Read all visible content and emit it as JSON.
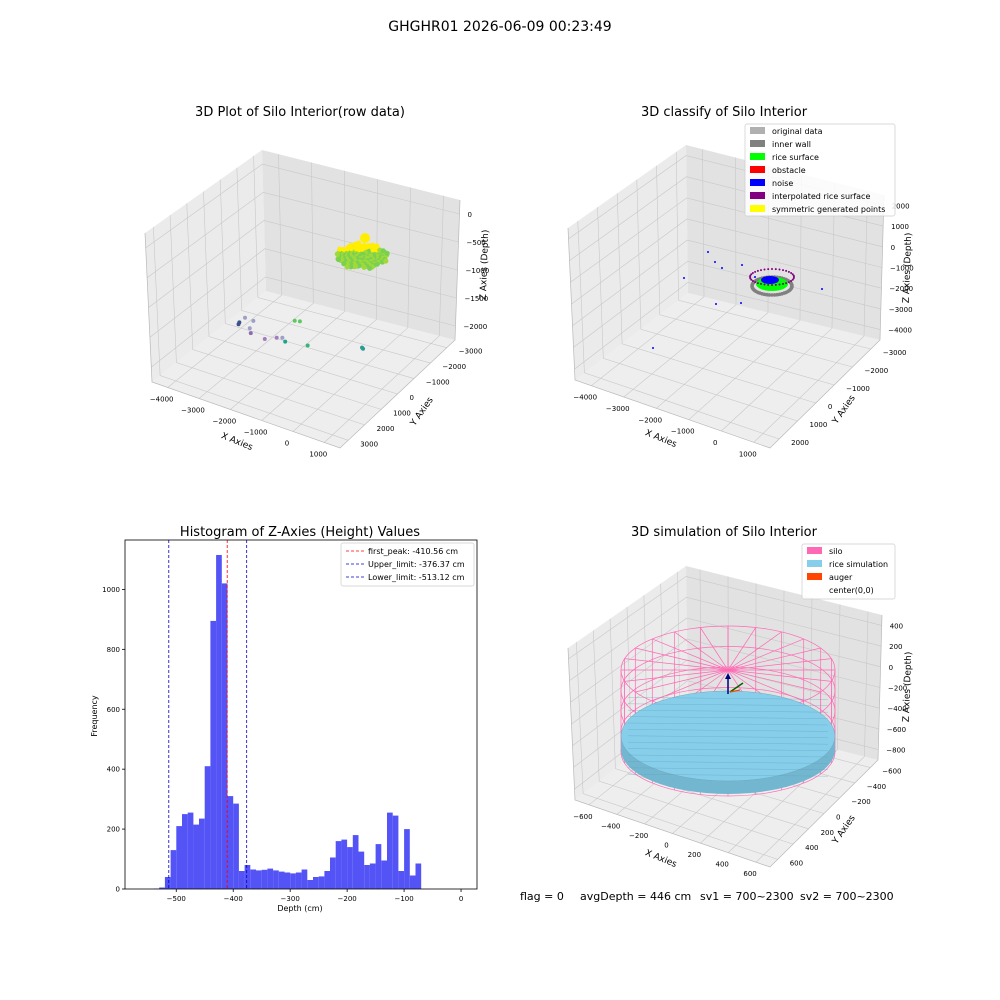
{
  "figure": {
    "suptitle": "GHGHR01 2026-06-09 00:23:49",
    "footer": {
      "flag": "flag = 0",
      "avg_depth": "avgDepth = 446 cm",
      "sv1": "sv1 = 700~2300",
      "sv2": "sv2 = 700~2300"
    }
  },
  "colors": {
    "pane_left": "#ebebeb",
    "pane_right": "#e2e2e2",
    "pane_floor": "#eeeeee",
    "grid": "#c8c8c8",
    "hist_bar": "#4a4af5",
    "peak_line": "#ff0000",
    "limit_line": "#0000cc",
    "rice_surface": "#00ff00",
    "rice_yellow": "#ffee00",
    "inner_wall": "#808080",
    "noise": "#0000ff",
    "interpolated": "#800080",
    "silo_wire": "#ff69b4",
    "rice_sim": "#87ceeb",
    "auger": "#ff4500"
  },
  "chart_data": [
    {
      "id": "raw",
      "type": "scatter",
      "title": "3D Plot of Silo Interior(row data)",
      "xlabel": "X Axies",
      "ylabel": "Y Axies",
      "zlabel": "Z Axies (Depth)",
      "x_ticks": [
        "-4000",
        "-3000",
        "-2000",
        "-1000",
        "0",
        "1000"
      ],
      "y_ticks": [
        "-3000",
        "-2000",
        "-1000",
        "0",
        "1000",
        "2000",
        "3000"
      ],
      "z_ticks": [
        "0",
        "-500",
        "-1000",
        "-1500",
        "-2000"
      ],
      "z_tick_labels": [
        "0",
        "−500",
        "−1000",
        "−1500",
        "−2000"
      ],
      "x_tick_labels": [
        "−4000",
        "−3000",
        "−2000",
        "−1000",
        "0",
        "1000"
      ],
      "y_tick_labels": [
        "−3000",
        "−2000",
        "−1000",
        "0",
        "1000",
        "2000",
        "3000"
      ],
      "points": [
        {
          "x": -3700,
          "y": -600,
          "z": -2000,
          "color": "#3b528b"
        },
        {
          "x": -3700,
          "y": -550,
          "z": -2020,
          "color": "#3b528b"
        },
        {
          "x": -2700,
          "y": 800,
          "z": -1700,
          "color": "#8c6bb1"
        },
        {
          "x": -2100,
          "y": 1200,
          "z": -1600,
          "color": "#a37bbf"
        },
        {
          "x": -1800,
          "y": 1100,
          "z": -1550,
          "color": "#a37bbf"
        },
        {
          "x": -1600,
          "y": 1000,
          "z": -1600,
          "color": "#20a486"
        },
        {
          "x": -2300,
          "y": 1700,
          "z": -1350,
          "color": "#9d9fc8"
        },
        {
          "x": -2100,
          "y": 1900,
          "z": -1150,
          "color": "#9d9fc8"
        },
        {
          "x": -2200,
          "y": 2200,
          "z": -1050,
          "color": "#9d9fc8"
        },
        {
          "x": -1300,
          "y": 1800,
          "z": -1300,
          "color": "#9d9fc8"
        },
        {
          "x": -800,
          "y": 1300,
          "z": -1450,
          "color": "#35b779"
        },
        {
          "x": 500,
          "y": 700,
          "z": -1400,
          "color": "#2a9d8f"
        },
        {
          "x": 520,
          "y": 680,
          "z": -1420,
          "color": "#2a9d8f"
        },
        {
          "x": -700,
          "y": 2300,
          "z": -800,
          "color": "#5ec962"
        },
        {
          "x": -500,
          "y": 2400,
          "z": -750,
          "color": "#5ec962"
        }
      ],
      "cluster": {
        "x": 0,
        "y": 2100,
        "z": -700,
        "note": "rice surface cluster"
      }
    },
    {
      "id": "classify",
      "type": "scatter",
      "title": "3D classify of Silo Interior",
      "xlabel": "X Axies",
      "ylabel": "Y Axies",
      "zlabel": "Z Axies (Depth)",
      "x_ticks": [
        "-4000",
        "-3000",
        "-2000",
        "-1000",
        "0",
        "1000"
      ],
      "x_tick_labels": [
        "−4000",
        "−3000",
        "−2000",
        "−1000",
        "0",
        "1000"
      ],
      "y_tick_labels": [
        "−3000",
        "−2000",
        "−1000",
        "0",
        "1000",
        "2000"
      ],
      "z_tick_labels": [
        "2000",
        "1000",
        "0",
        "−1000",
        "−2000",
        "−3000",
        "−4000"
      ],
      "legend": [
        {
          "label": "original data",
          "color": "#b0b0b0"
        },
        {
          "label": "inner wall",
          "color": "#808080"
        },
        {
          "label": "rice surface",
          "color": "#00ff00"
        },
        {
          "label": "obstacle",
          "color": "#ff0000"
        },
        {
          "label": "noise",
          "color": "#0000ff"
        },
        {
          "label": "interpolated rice surface",
          "color": "#800080"
        },
        {
          "label": "symmetric generated points",
          "color": "#ffff00"
        }
      ],
      "legend_position": "top-right"
    },
    {
      "id": "hist",
      "type": "bar",
      "title": "Histogram of Z-Axies (Height) Values",
      "xlabel": "Depth (cm)",
      "ylabel": "Frequency",
      "xlim": [
        -590,
        28
      ],
      "ylim": [
        0,
        1165
      ],
      "x_ticks": [
        -500,
        -400,
        -300,
        -200,
        -100,
        0
      ],
      "x_tick_labels": [
        "−500",
        "−400",
        "−300",
        "−200",
        "−100",
        "0"
      ],
      "y_ticks": [
        0,
        200,
        400,
        600,
        800,
        1000
      ],
      "y_tick_labels": [
        "0",
        "200",
        "400",
        "600",
        "800",
        "1000"
      ],
      "bins": [
        [
          -580,
          -570,
          0
        ],
        [
          -570,
          -560,
          0
        ],
        [
          -560,
          -550,
          0
        ],
        [
          -550,
          -540,
          0
        ],
        [
          -540,
          -530,
          1
        ],
        [
          -530,
          -520,
          5
        ],
        [
          -520,
          -510,
          40
        ],
        [
          -510,
          -500,
          130
        ],
        [
          -500,
          -490,
          210
        ],
        [
          -490,
          -480,
          250
        ],
        [
          -480,
          -470,
          255
        ],
        [
          -470,
          -460,
          215
        ],
        [
          -460,
          -450,
          235
        ],
        [
          -450,
          -440,
          410
        ],
        [
          -440,
          -430,
          895
        ],
        [
          -430,
          -420,
          1115
        ],
        [
          -420,
          -410,
          1020
        ],
        [
          -410,
          -400,
          310
        ],
        [
          -400,
          -390,
          285
        ],
        [
          -390,
          -380,
          60
        ],
        [
          -380,
          -370,
          80
        ],
        [
          -370,
          -360,
          65
        ],
        [
          -360,
          -350,
          62
        ],
        [
          -350,
          -340,
          64
        ],
        [
          -340,
          -330,
          68
        ],
        [
          -330,
          -320,
          62
        ],
        [
          -320,
          -310,
          58
        ],
        [
          -310,
          -300,
          55
        ],
        [
          -300,
          -290,
          52
        ],
        [
          -290,
          -280,
          55
        ],
        [
          -280,
          -270,
          65
        ],
        [
          -270,
          -260,
          30
        ],
        [
          -260,
          -250,
          40
        ],
        [
          -250,
          -240,
          42
        ],
        [
          -240,
          -230,
          60
        ],
        [
          -230,
          -220,
          105
        ],
        [
          -220,
          -210,
          160
        ],
        [
          -210,
          -200,
          165
        ],
        [
          -200,
          -190,
          140
        ],
        [
          -190,
          -180,
          180
        ],
        [
          -180,
          -170,
          125
        ],
        [
          -170,
          -160,
          80
        ],
        [
          -160,
          -150,
          85
        ],
        [
          -150,
          -140,
          150
        ],
        [
          -140,
          -130,
          95
        ],
        [
          -130,
          -120,
          255
        ],
        [
          -120,
          -110,
          245
        ],
        [
          -110,
          -100,
          60
        ],
        [
          -100,
          -90,
          200
        ],
        [
          -90,
          -80,
          45
        ],
        [
          -80,
          -70,
          85
        ],
        [
          -70,
          -60,
          0
        ]
      ],
      "lines": [
        {
          "x": -410.56,
          "style": "peak",
          "label": "first_peak: -410.56 cm"
        },
        {
          "x": -376.37,
          "style": "limit",
          "label": "Upper_limit: -376.37 cm"
        },
        {
          "x": -513.12,
          "style": "limit",
          "label": "Lower_limit: -513.12 cm"
        }
      ],
      "legend_position": "top-right"
    },
    {
      "id": "sim",
      "type": "scatter",
      "title": "3D simulation of Silo Interior",
      "xlabel": "X Axies",
      "ylabel": "Y Axies",
      "zlabel": "Z Axies (Depth)",
      "x_tick_labels": [
        "−600",
        "−400",
        "−200",
        "0",
        "200",
        "400",
        "600"
      ],
      "y_tick_labels": [
        "−600",
        "−400",
        "−200",
        "0",
        "200",
        "400",
        "600"
      ],
      "z_tick_labels": [
        "400",
        "200",
        "0",
        "−200",
        "−400",
        "−600",
        "−800"
      ],
      "legend": [
        {
          "label": "silo",
          "color": "#ff69b4"
        },
        {
          "label": "rice simulation",
          "color": "#87ceeb"
        },
        {
          "label": "auger",
          "color": "#ff4500"
        },
        {
          "label": "center(0,0)",
          "color": "#ffffff"
        }
      ],
      "legend_position": "top-right"
    }
  ]
}
